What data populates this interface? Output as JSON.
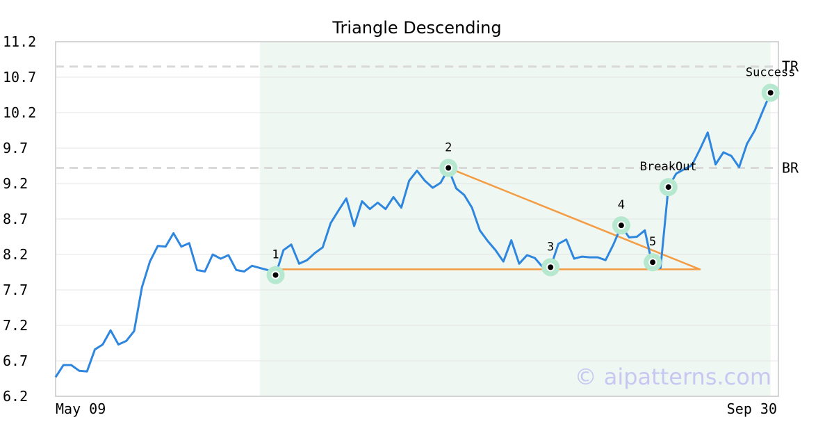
{
  "chart_data": {
    "type": "line",
    "title": "Triangle Descending",
    "xlabel": "",
    "ylabel": "",
    "ylim": [
      6.2,
      11.2
    ],
    "y_ticks": [
      "11.2",
      "10.7",
      "10.2",
      "9.7",
      "9.2",
      "8.7",
      "8.2",
      "7.7",
      "7.2",
      "6.7",
      "6.2"
    ],
    "x_tick_labels": [
      "May 09",
      "Sep 30"
    ],
    "grid": "horizontal",
    "colors": {
      "price": "#2e86de",
      "triangle": "#f39c43",
      "highlight_band": "#eef7f2",
      "marker_halo": "#b5e8cf",
      "level_line": "#d9d9d9"
    },
    "series": [
      {
        "values": [
          6.47,
          6.64,
          6.64,
          6.56,
          6.55,
          6.86,
          6.93,
          7.13,
          6.93,
          6.98,
          7.12,
          7.74,
          8.1,
          8.32,
          8.31,
          8.5,
          8.31,
          8.36,
          7.98,
          7.96,
          8.2,
          8.14,
          8.19,
          7.98,
          7.96,
          8.04,
          8.01,
          7.98,
          7.91,
          8.26,
          8.34,
          8.07,
          8.12,
          8.22,
          8.3,
          8.64,
          8.82,
          8.99,
          8.6,
          8.95,
          8.84,
          8.93,
          8.84,
          9.01,
          8.86,
          9.24,
          9.38,
          9.24,
          9.14,
          9.21,
          9.41,
          9.13,
          9.04,
          8.86,
          8.54,
          8.39,
          8.26,
          8.1,
          8.4,
          8.07,
          8.19,
          8.15,
          8.02,
          8.02,
          8.35,
          8.41,
          8.14,
          8.17,
          8.16,
          8.16,
          8.12,
          8.34,
          8.6,
          8.44,
          8.45,
          8.54,
          8.03,
          8.01,
          9.15,
          9.34,
          9.4,
          9.46,
          9.68,
          9.92,
          9.47,
          9.64,
          9.59,
          9.43,
          9.76,
          9.95,
          10.22,
          10.48,
          10.48
        ]
      }
    ],
    "pattern_shaded_range": [
      26,
      91
    ],
    "triangle_lines": [
      {
        "from": [
          28,
          7.99
        ],
        "to": [
          82,
          7.99
        ]
      },
      {
        "from": [
          50,
          9.42
        ],
        "to": [
          82,
          7.99
        ]
      }
    ],
    "levels": [
      {
        "label": "TR",
        "value": 10.85
      },
      {
        "label": "BR",
        "value": 9.42
      }
    ],
    "points": [
      {
        "label": "1",
        "x": 28,
        "y": 7.91
      },
      {
        "label": "2",
        "x": 50,
        "y": 9.42
      },
      {
        "label": "3",
        "x": 63,
        "y": 8.02
      },
      {
        "label": "4",
        "x": 72,
        "y": 8.61
      },
      {
        "label": "5",
        "x": 76,
        "y": 8.09
      },
      {
        "label": "BreakOut",
        "x": 78,
        "y": 9.15
      },
      {
        "label": "Success",
        "x": 91,
        "y": 10.48
      }
    ],
    "watermark": "© aipatterns.com"
  }
}
